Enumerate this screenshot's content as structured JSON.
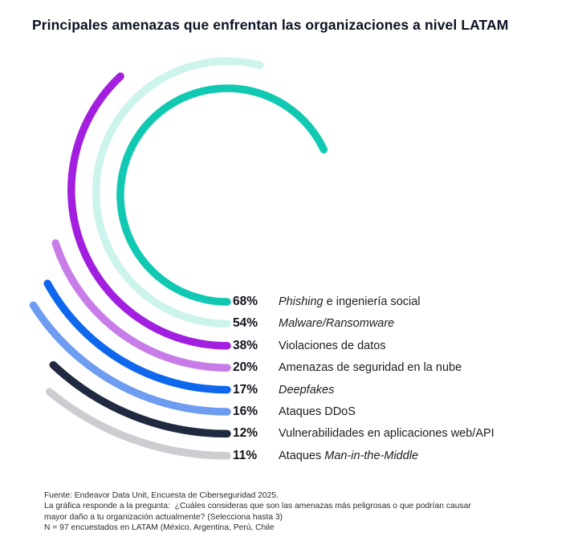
{
  "header": {
    "title": "Principales amenazas que enfrentan las organizaciones a nivel LATAM"
  },
  "chart_data": {
    "type": "radial-bar",
    "unit": "%",
    "scale_max": 100,
    "full_circle_value": 100,
    "start_position": "bottom-at-legend-row",
    "sweep_direction": "clockwise",
    "layout": "concentric arcs, innermost = largest value, each arc ends at its legend row",
    "items": [
      {
        "id": "phishing",
        "value": 68,
        "pct_label": "68%",
        "color": "#11c9b2",
        "label_parts": [
          {
            "t": "Phishing",
            "i": true
          },
          {
            "t": " e ingeniería social",
            "i": false
          }
        ]
      },
      {
        "id": "malware-ransomware",
        "value": 54,
        "pct_label": "54%",
        "color": "#ccf3ec",
        "label_parts": [
          {
            "t": "Malware/Ransomware",
            "i": true
          }
        ]
      },
      {
        "id": "violaciones-datos",
        "value": 38,
        "pct_label": "38%",
        "color": "#a21fe0",
        "label_parts": [
          {
            "t": "Violaciones de datos",
            "i": false
          }
        ]
      },
      {
        "id": "seguridad-nube",
        "value": 20,
        "pct_label": "20%",
        "color": "#c77ce8",
        "label_parts": [
          {
            "t": "Amenazas de seguridad en la nube",
            "i": false
          }
        ]
      },
      {
        "id": "deepfakes",
        "value": 17,
        "pct_label": "17%",
        "color": "#0f67ed",
        "label_parts": [
          {
            "t": "Deepfakes",
            "i": true
          }
        ]
      },
      {
        "id": "ddos",
        "value": 16,
        "pct_label": "16%",
        "color": "#6d9cf1",
        "label_parts": [
          {
            "t": "Ataques DDoS",
            "i": false
          }
        ]
      },
      {
        "id": "vulnerabilidades-web-api",
        "value": 12,
        "pct_label": "12%",
        "color": "#1f2940",
        "label_parts": [
          {
            "t": "Vulnerabilidades en aplicaciones web/API",
            "i": false
          }
        ]
      },
      {
        "id": "man-in-the-middle",
        "value": 11,
        "pct_label": "11%",
        "color": "#cbcdd0",
        "label_parts": [
          {
            "t": "Ataques ",
            "i": false
          },
          {
            "t": "Man-in-the-Middle",
            "i": true
          }
        ]
      }
    ]
  },
  "footer": {
    "lines": [
      "Fuente: Endeavor Data Unit, Encuesta de Ciberseguridad 2025.",
      "La gráfica responde a la pregunta:  ¿Cuáles consideras que son las amenazas más peligrosas o que podrían causar",
      "mayor daño a tu organización actualmente? (Selecciona hasta 3)",
      "N = 97 encuestados en LATAM (México, Argentina, Perú, Chile"
    ]
  }
}
